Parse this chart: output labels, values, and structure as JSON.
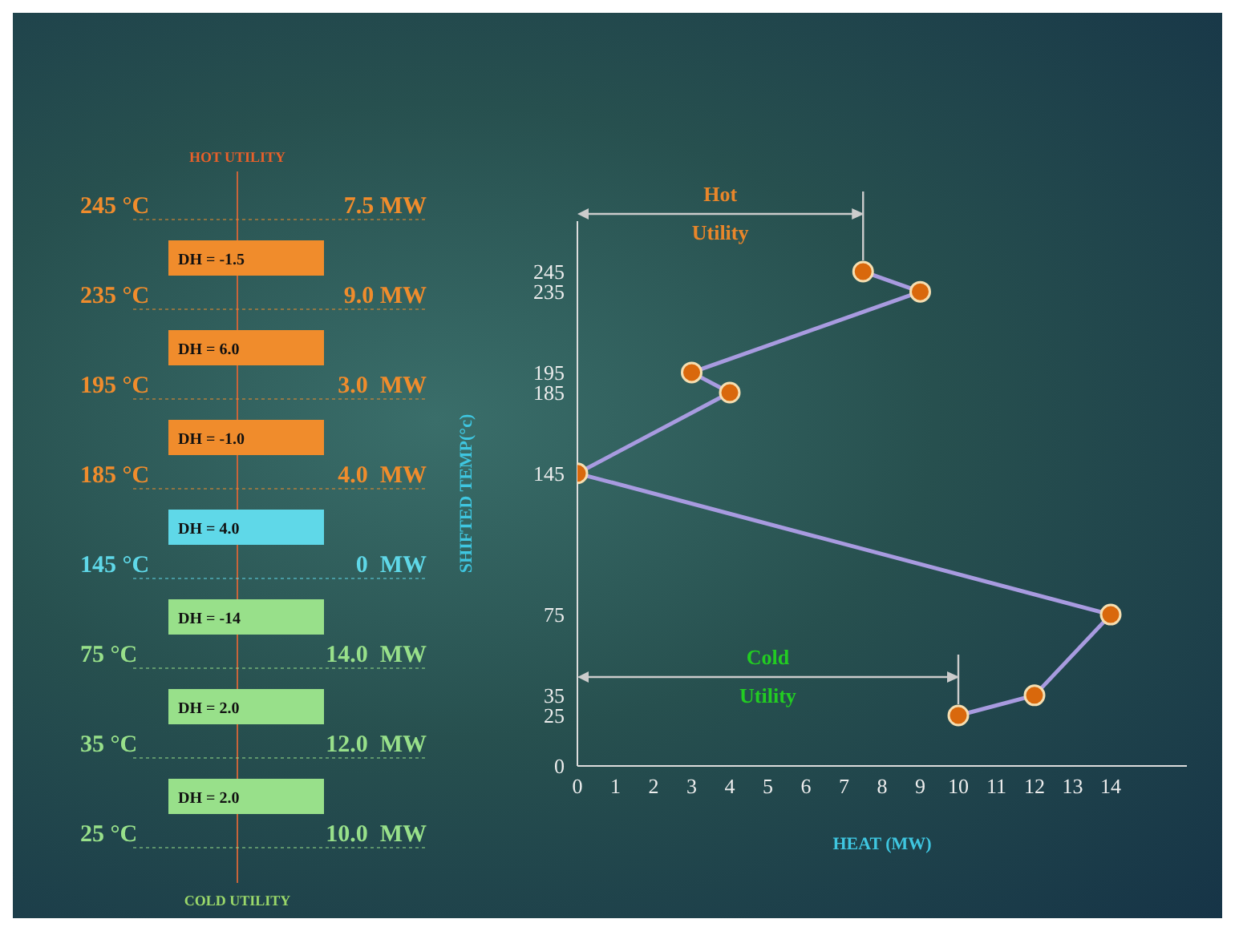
{
  "chart_data": [
    {
      "type": "other",
      "title": "HOT UTILITY",
      "xlabel": "COLD UTILITY",
      "categories": [
        "245 °C",
        "235 °C",
        "195 °C",
        "185 °C",
        "145 °C",
        "75 °C",
        "35 °C",
        "25 °C"
      ],
      "value_labels": [
        "7.5 MW",
        "9.0 MW",
        "3.0  MW",
        "4.0  MW",
        "0  MW",
        "14.0  MW",
        "12.0  MW",
        "10.0  MW"
      ],
      "annotations": [
        "DH = -1.5",
        "DH = 6.0",
        "DH = -1.0",
        "DH = 4.0",
        "DH = -14",
        "DH = 2.0",
        "DH = 2.0"
      ],
      "colors": [
        "#f08c2c",
        "#f08c2c",
        "#f08c2c",
        "#5fd8e8",
        "#98e08a",
        "#98e08a",
        "#98e08a"
      ]
    },
    {
      "type": "line",
      "xlabel": "HEAT (MW)",
      "ylabel": "SHIFTED TEMP(°c)",
      "x": [
        7.5,
        9,
        3,
        4,
        0,
        14,
        12,
        10
      ],
      "series": [
        {
          "color": "#d9680c",
          "values": [
            245,
            235,
            195,
            185,
            145,
            75,
            35,
            25
          ]
        }
      ],
      "xlim": [
        0,
        16
      ],
      "xticks": [
        0,
        1,
        2,
        3,
        4,
        5,
        6,
        7,
        8,
        9,
        10,
        11,
        12,
        13,
        14
      ],
      "ylim": [
        0,
        270
      ],
      "yticks": [
        0,
        25,
        35,
        75,
        145,
        185,
        195,
        235,
        245
      ],
      "marker": "circle",
      "grid": false,
      "legend": false,
      "annotations": [
        "Hot Utility",
        "Cold Utility"
      ]
    }
  ]
}
